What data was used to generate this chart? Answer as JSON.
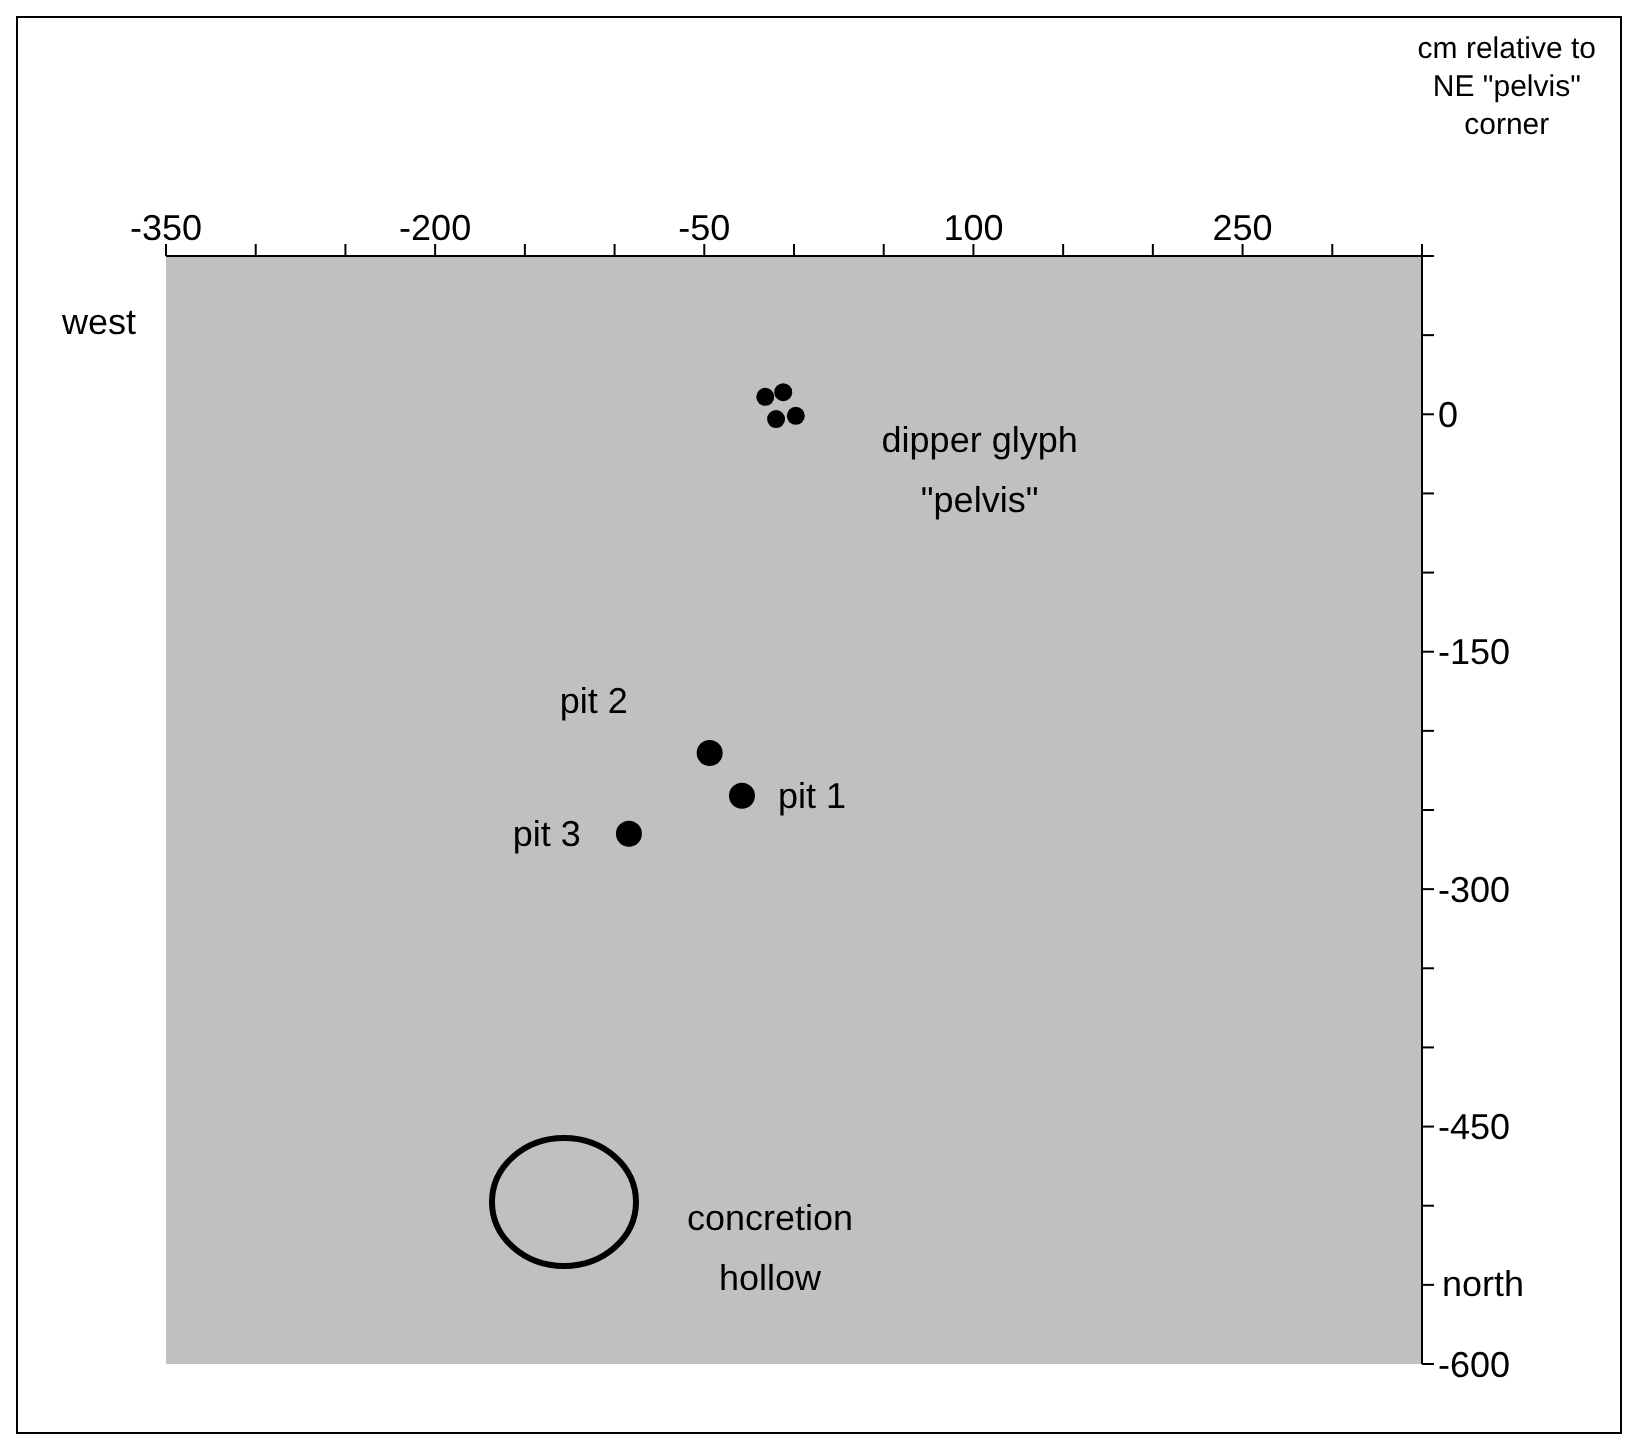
{
  "chart_data": {
    "type": "scatter",
    "xlabel": "cm relative to NE \"pelvis\" corner",
    "marker": "circle",
    "grid": false,
    "legend": false,
    "xlim": [
      -350,
      350
    ],
    "xticks": [
      -350,
      {
        "value": -300,
        "label": null
      },
      {
        "value": -250,
        "label": null
      },
      -200,
      {
        "value": -150,
        "label": null
      },
      {
        "value": -100,
        "label": null
      },
      -50,
      {
        "value": 0,
        "label": null
      },
      {
        "value": 50,
        "label": null
      },
      100,
      {
        "value": 150,
        "label": null
      },
      {
        "value": 200,
        "label": null
      },
      250,
      {
        "value": 300,
        "label": null
      },
      {
        "value": 350,
        "label": null
      }
    ],
    "ylim": [
      -600,
      100
    ],
    "yticks": [
      {
        "value": 100,
        "label": null
      },
      {
        "value": 50,
        "label": null
      },
      0,
      {
        "value": -50,
        "label": null
      },
      {
        "value": -100,
        "label": null
      },
      -150,
      {
        "value": -200,
        "label": null
      },
      {
        "value": -250,
        "label": null
      },
      -300,
      {
        "value": -350,
        "label": null
      },
      {
        "value": -400,
        "label": null
      },
      -450,
      {
        "value": -500,
        "label": null
      },
      {
        "value": -550,
        "label": null
      },
      -600
    ],
    "series": [
      {
        "color": "#000000",
        "x": [
          -16,
          -6,
          -10,
          1
        ],
        "values": [
          11,
          14,
          -3,
          -1
        ]
      },
      {
        "color": "#000000",
        "x": [
          -29,
          -47,
          -92
        ],
        "values": [
          -241,
          -214,
          -265
        ]
      }
    ],
    "annotations": [
      {
        "text": "dipper glyph \"pelvis\"",
        "x": -8,
        "y": 5
      },
      {
        "text": "pit 1",
        "x": -29,
        "y": -241
      },
      {
        "text": "pit 2",
        "x": -47,
        "y": -214
      },
      {
        "text": "pit 3",
        "x": -92,
        "y": -265
      },
      "concretion hollow",
      "west",
      "north"
    ]
  }
}
